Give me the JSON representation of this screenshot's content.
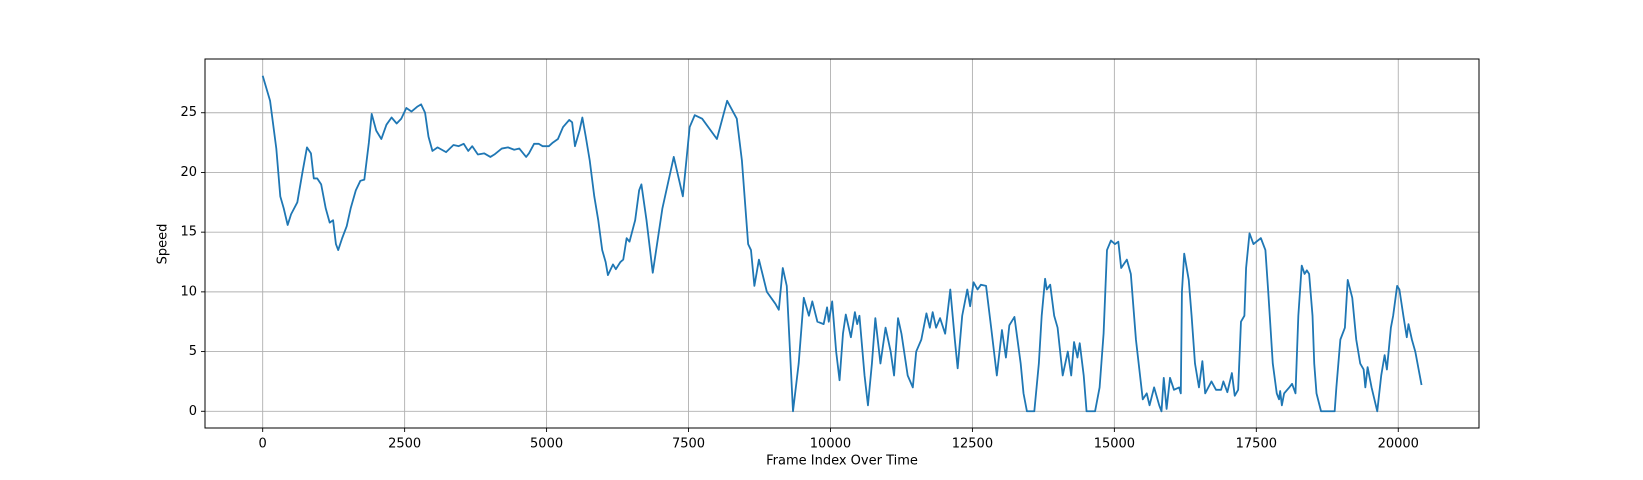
{
  "chart_data": {
    "type": "line",
    "xlabel": "Frame Index Over Time",
    "ylabel": "Speed",
    "x": [
      0,
      130,
      240,
      310,
      370,
      440,
      500,
      610,
      700,
      780,
      850,
      900,
      960,
      1030,
      1110,
      1180,
      1240,
      1290,
      1330,
      1400,
      1480,
      1550,
      1640,
      1720,
      1790,
      1870,
      1920,
      2000,
      2090,
      2180,
      2270,
      2360,
      2440,
      2530,
      2620,
      2720,
      2790,
      2860,
      2920,
      2990,
      3080,
      3230,
      3360,
      3450,
      3540,
      3620,
      3690,
      3790,
      3900,
      4010,
      4080,
      4210,
      4320,
      4430,
      4520,
      4640,
      4690,
      4780,
      4860,
      4930,
      5040,
      5110,
      5200,
      5290,
      5400,
      5450,
      5500,
      5580,
      5630,
      5690,
      5760,
      5840,
      5910,
      5980,
      6040,
      6080,
      6170,
      6220,
      6300,
      6350,
      6410,
      6460,
      6560,
      6630,
      6670,
      6760,
      6870,
      7040,
      7240,
      7400,
      7520,
      7610,
      7740,
      8000,
      8180,
      8350,
      8440,
      8550,
      8600,
      8660,
      8740,
      8880,
      9030,
      9090,
      9160,
      9230,
      9340,
      9440,
      9530,
      9620,
      9680,
      9770,
      9880,
      9940,
      9970,
      10030,
      10100,
      10160,
      10220,
      10270,
      10360,
      10430,
      10470,
      10510,
      10600,
      10660,
      10730,
      10790,
      10880,
      10970,
      11060,
      11120,
      11190,
      11250,
      11360,
      11450,
      11510,
      11600,
      11690,
      11750,
      11800,
      11860,
      11930,
      12020,
      12110,
      12190,
      12240,
      12320,
      12410,
      12460,
      12520,
      12590,
      12650,
      12740,
      12830,
      12930,
      13020,
      13090,
      13150,
      13240,
      13350,
      13400,
      13460,
      13590,
      13670,
      13720,
      13780,
      13810,
      13870,
      13940,
      14000,
      14090,
      14180,
      14240,
      14290,
      14350,
      14390,
      14460,
      14510,
      14660,
      14740,
      14810,
      14870,
      14940,
      15010,
      15070,
      15120,
      15220,
      15290,
      15380,
      15500,
      15570,
      15620,
      15700,
      15790,
      15830,
      15870,
      15920,
      15980,
      16050,
      16140,
      16170,
      16190,
      16230,
      16310,
      16360,
      16420,
      16490,
      16550,
      16600,
      16710,
      16790,
      16880,
      16920,
      16990,
      17070,
      17120,
      17180,
      17230,
      17290,
      17320,
      17380,
      17450,
      17580,
      17660,
      17710,
      17790,
      17860,
      17900,
      17920,
      17950,
      17990,
      18080,
      18130,
      18190,
      18240,
      18300,
      18350,
      18390,
      18430,
      18490,
      18520,
      18560,
      18640,
      18880,
      18910,
      18980,
      19060,
      19110,
      19190,
      19260,
      19330,
      19390,
      19420,
      19460,
      19530,
      19630,
      19700,
      19760,
      19800,
      19870,
      19910,
      19980,
      20020,
      20090,
      20150,
      20180,
      20240,
      20300,
      20410
    ],
    "series": [
      {
        "color": "#1f77b4",
        "values": [
          28.1,
          26,
          22,
          18,
          17,
          15.6,
          16.5,
          17.5,
          20,
          22.1,
          21.6,
          19.5,
          19.5,
          19,
          17,
          15.8,
          16,
          14,
          13.5,
          14.5,
          15.5,
          17,
          18.5,
          19.3,
          19.4,
          22.5,
          24.9,
          23.5,
          22.8,
          24,
          24.6,
          24.1,
          24.5,
          25.4,
          25.1,
          25.5,
          25.7,
          25,
          23,
          21.8,
          22.1,
          21.7,
          22.3,
          22.2,
          22.4,
          21.8,
          22.2,
          21.5,
          21.6,
          21.3,
          21.5,
          22,
          22.1,
          21.9,
          22,
          21.3,
          21.6,
          22.4,
          22.4,
          22.2,
          22.2,
          22.5,
          22.8,
          23.8,
          24.4,
          24.2,
          22.2,
          23.5,
          24.6,
          23,
          21,
          18,
          16,
          13.5,
          12.5,
          11.4,
          12.3,
          11.9,
          12.5,
          12.7,
          14.5,
          14.2,
          16,
          18.5,
          19,
          16,
          11.6,
          17,
          21.3,
          18,
          23.8,
          24.8,
          24.5,
          22.8,
          26,
          24.5,
          21,
          14,
          13.5,
          10.5,
          12.7,
          10,
          9,
          8.5,
          12,
          10.5,
          0,
          4,
          9.5,
          8,
          9.2,
          7.5,
          7.3,
          8.7,
          7.5,
          9.2,
          5,
          2.6,
          6.5,
          8.1,
          6.2,
          8.3,
          7.3,
          8,
          3,
          0.5,
          4,
          7.8,
          4,
          7,
          5,
          3,
          7.8,
          6.5,
          3,
          2,
          5,
          6,
          8.2,
          7,
          8.3,
          7,
          7.8,
          6.5,
          10.2,
          6,
          3.6,
          8,
          10.2,
          8.8,
          10.8,
          10.2,
          10.6,
          10.5,
          7,
          3,
          6.8,
          4.5,
          7.2,
          7.9,
          4,
          1.5,
          0,
          0,
          4,
          8,
          11.1,
          10.2,
          10.6,
          8,
          7,
          3,
          5,
          3,
          5.8,
          4.5,
          5.7,
          3,
          0,
          0,
          2,
          6.5,
          13.5,
          14.3,
          14,
          14.2,
          12,
          12.7,
          11.5,
          6,
          1,
          1.5,
          0.5,
          2,
          0.5,
          0,
          2.8,
          0.2,
          2.8,
          1.8,
          2,
          1.5,
          10,
          13.2,
          11,
          8,
          4,
          2,
          4.2,
          1.5,
          2.5,
          1.8,
          1.8,
          2.5,
          1.6,
          3.2,
          1.3,
          1.8,
          7.5,
          8,
          12,
          14.9,
          14,
          14.5,
          13.5,
          10,
          4,
          1.5,
          1,
          1.7,
          0.5,
          1.5,
          2,
          2.3,
          1.5,
          8,
          12.2,
          11.5,
          11.8,
          11.5,
          8,
          4,
          1.5,
          0,
          0,
          2,
          6,
          7,
          11,
          9.5,
          6,
          4,
          3.5,
          2,
          3.7,
          2,
          0,
          3,
          4.7,
          3.5,
          7,
          8,
          10.5,
          10.2,
          8,
          6.2,
          7.3,
          6,
          5,
          2.2
        ]
      }
    ],
    "xlim": [
      -1016,
      21422
    ],
    "ylim": [
      -1.4,
      29.5
    ],
    "xticks": [
      0,
      2500,
      5000,
      7500,
      10000,
      12500,
      15000,
      17500,
      20000
    ],
    "yticks": [
      0,
      5,
      10,
      15,
      20,
      25
    ],
    "grid": true
  }
}
